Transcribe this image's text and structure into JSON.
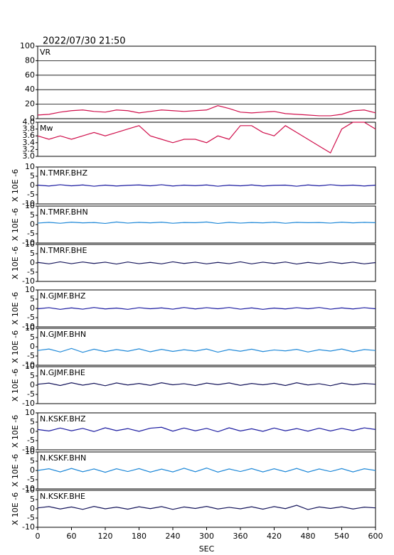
{
  "chart_data": [
    {
      "type": "line",
      "title": "2022/07/30 21:50",
      "grid": true,
      "x": [
        0,
        20,
        40,
        60,
        80,
        100,
        120,
        140,
        160,
        180,
        200,
        220,
        240,
        260,
        280,
        300,
        320,
        340,
        360,
        380,
        400,
        420,
        440,
        460,
        480,
        500,
        520,
        540,
        560,
        580,
        600
      ],
      "xlim": [
        0,
        600
      ],
      "ylim": [
        0,
        100
      ],
      "yticks": [
        0,
        20,
        40,
        60,
        80,
        100
      ],
      "series": [
        {
          "name": "VR",
          "color": "#d0104c",
          "values": [
            5,
            6,
            9,
            11,
            12,
            10,
            9,
            12,
            11,
            8,
            10,
            12,
            11,
            10,
            11,
            12,
            18,
            14,
            9,
            8,
            9,
            10,
            7,
            6,
            5,
            4,
            4,
            6,
            11,
            12,
            8
          ]
        }
      ]
    },
    {
      "type": "line",
      "x": [
        0,
        20,
        40,
        60,
        80,
        100,
        120,
        140,
        160,
        180,
        200,
        220,
        240,
        260,
        280,
        300,
        320,
        340,
        360,
        380,
        400,
        420,
        440,
        460,
        480,
        500,
        520,
        540,
        560,
        580,
        600
      ],
      "xlim": [
        0,
        600
      ],
      "ylim": [
        3.0,
        4.0
      ],
      "yticks": [
        {
          "value": 3.0,
          "label": "3.0"
        },
        3.2,
        3.4,
        3.6,
        3.8,
        {
          "value": 4.0,
          "label": "4.0"
        }
      ],
      "series": [
        {
          "name": "Mw",
          "color": "#d0104c",
          "values": [
            3.6,
            3.5,
            3.6,
            3.5,
            3.6,
            3.7,
            3.6,
            3.7,
            3.8,
            3.9,
            3.6,
            3.5,
            3.4,
            3.5,
            3.5,
            3.4,
            3.6,
            3.5,
            3.9,
            3.9,
            3.7,
            3.6,
            3.9,
            3.7,
            3.5,
            3.3,
            3.1,
            3.8,
            4.0,
            4.0,
            3.8
          ]
        }
      ]
    },
    {
      "type": "line",
      "ylabel": "X 10E -6",
      "x": [
        0,
        20,
        40,
        60,
        80,
        100,
        120,
        140,
        160,
        180,
        200,
        220,
        240,
        260,
        280,
        300,
        320,
        340,
        360,
        380,
        400,
        420,
        440,
        460,
        480,
        500,
        520,
        540,
        560,
        580,
        600
      ],
      "xlim": [
        0,
        600
      ],
      "ylim": [
        -10,
        10
      ],
      "yticks": [
        -10,
        -5,
        0,
        5,
        10
      ],
      "series": [
        {
          "name": "N.TMRF.BHZ",
          "color": "#1a1aa0",
          "values": [
            0.2,
            -0.3,
            0.4,
            -0.2,
            0.3,
            -0.4,
            0.2,
            -0.3,
            0.1,
            0.3,
            -0.2,
            0.4,
            -0.3,
            0.2,
            -0.1,
            0.3,
            -0.4,
            0.2,
            -0.2,
            0.3,
            -0.3,
            0.1,
            0.2,
            -0.4,
            0.3,
            -0.2,
            0.4,
            -0.1,
            0.2,
            -0.3,
            0.2
          ]
        }
      ]
    },
    {
      "type": "line",
      "ylabel": "X 10E -6",
      "x": [
        0,
        20,
        40,
        60,
        80,
        100,
        120,
        140,
        160,
        180,
        200,
        220,
        240,
        260,
        280,
        300,
        320,
        340,
        360,
        380,
        400,
        420,
        440,
        460,
        480,
        500,
        520,
        540,
        560,
        580,
        600
      ],
      "xlim": [
        0,
        600
      ],
      "ylim": [
        -10,
        10
      ],
      "yticks": [
        -10,
        -5,
        0,
        5,
        10
      ],
      "series": [
        {
          "name": "N.TMRF.BHN",
          "color": "#1e88d8",
          "values": [
            0.8,
            1.2,
            0.7,
            1.3,
            0.9,
            1.1,
            0.6,
            1.4,
            0.8,
            1.2,
            0.9,
            1.3,
            0.7,
            1.1,
            1.0,
            1.4,
            0.6,
            1.2,
            0.8,
            1.1,
            0.9,
            1.3,
            0.7,
            1.2,
            1.0,
            1.1,
            0.8,
            1.3,
            0.9,
            1.2,
            1.0
          ]
        }
      ]
    },
    {
      "type": "line",
      "ylabel": "X 10E -6",
      "x": [
        0,
        20,
        40,
        60,
        80,
        100,
        120,
        140,
        160,
        180,
        200,
        220,
        240,
        260,
        280,
        300,
        320,
        340,
        360,
        380,
        400,
        420,
        440,
        460,
        480,
        500,
        520,
        540,
        560,
        580,
        600
      ],
      "xlim": [
        0,
        600
      ],
      "ylim": [
        -10,
        10
      ],
      "yticks": [
        -10,
        -5,
        0,
        5,
        10
      ],
      "series": [
        {
          "name": "N.TMRF.BHE",
          "color": "#14145a",
          "values": [
            0.3,
            -0.5,
            0.6,
            -0.4,
            0.5,
            -0.3,
            0.4,
            -0.6,
            0.5,
            -0.4,
            0.3,
            -0.5,
            0.6,
            -0.3,
            0.4,
            -0.5,
            0.3,
            -0.4,
            0.6,
            -0.5,
            0.4,
            -0.3,
            0.5,
            -0.6,
            0.3,
            -0.4,
            0.5,
            -0.3,
            0.4,
            -0.5,
            0.2
          ]
        }
      ]
    },
    {
      "type": "line",
      "ylabel": "X 10E -6",
      "x": [
        0,
        20,
        40,
        60,
        80,
        100,
        120,
        140,
        160,
        180,
        200,
        220,
        240,
        260,
        280,
        300,
        320,
        340,
        360,
        380,
        400,
        420,
        440,
        460,
        480,
        500,
        520,
        540,
        560,
        580,
        600
      ],
      "xlim": [
        0,
        600
      ],
      "ylim": [
        -10,
        10
      ],
      "yticks": [
        -10,
        -5,
        0,
        5,
        10
      ],
      "series": [
        {
          "name": "N.GJMF.BHZ",
          "color": "#1a1aa0",
          "values": [
            -0.2,
            0.4,
            -0.5,
            0.3,
            -0.4,
            0.5,
            -0.3,
            0.2,
            -0.5,
            0.4,
            -0.2,
            0.3,
            -0.4,
            0.5,
            -0.3,
            0.4,
            -0.2,
            0.5,
            -0.4,
            0.3,
            -0.5,
            0.2,
            -0.3,
            0.4,
            -0.2,
            0.5,
            -0.4,
            0.3,
            -0.3,
            0.4,
            -0.2
          ]
        }
      ]
    },
    {
      "type": "line",
      "ylabel": "X 10E -6",
      "x": [
        0,
        20,
        40,
        60,
        80,
        100,
        120,
        140,
        160,
        180,
        200,
        220,
        240,
        260,
        280,
        300,
        320,
        340,
        360,
        380,
        400,
        420,
        440,
        460,
        480,
        500,
        520,
        540,
        560,
        580,
        600
      ],
      "xlim": [
        0,
        600
      ],
      "ylim": [
        -10,
        10
      ],
      "yticks": [
        -10,
        -5,
        0,
        5,
        10
      ],
      "series": [
        {
          "name": "N.GJMF.BHN",
          "color": "#1e88d8",
          "values": [
            -2.0,
            -1.2,
            -2.8,
            -0.9,
            -3.0,
            -1.3,
            -2.6,
            -1.5,
            -2.4,
            -1.1,
            -2.7,
            -1.4,
            -2.5,
            -1.6,
            -2.3,
            -1.2,
            -2.9,
            -1.5,
            -2.4,
            -1.3,
            -2.6,
            -1.7,
            -2.2,
            -1.4,
            -2.8,
            -1.6,
            -2.3,
            -1.2,
            -2.7,
            -1.5,
            -2.0
          ]
        }
      ]
    },
    {
      "type": "line",
      "ylabel": "X 10E -6",
      "x": [
        0,
        20,
        40,
        60,
        80,
        100,
        120,
        140,
        160,
        180,
        200,
        220,
        240,
        260,
        280,
        300,
        320,
        340,
        360,
        380,
        400,
        420,
        440,
        460,
        480,
        500,
        520,
        540,
        560,
        580,
        600
      ],
      "xlim": [
        0,
        600
      ],
      "ylim": [
        -10,
        10
      ],
      "yticks": [
        -10,
        -5,
        0,
        5,
        10
      ],
      "series": [
        {
          "name": "N.GJMF.BHE",
          "color": "#14145a",
          "values": [
            0.5,
            1.1,
            -0.2,
            1.3,
            0.0,
            1.0,
            -0.3,
            1.2,
            0.1,
            0.9,
            -0.1,
            1.3,
            0.2,
            0.8,
            -0.2,
            1.1,
            0.3,
            1.2,
            -0.1,
            0.9,
            0.2,
            1.0,
            -0.2,
            1.3,
            0.1,
            0.8,
            -0.3,
            1.1,
            0.2,
            0.9,
            0.5
          ]
        }
      ]
    },
    {
      "type": "line",
      "ylabel": "X 10E -6",
      "x": [
        0,
        20,
        40,
        60,
        80,
        100,
        120,
        140,
        160,
        180,
        200,
        220,
        240,
        260,
        280,
        300,
        320,
        340,
        360,
        380,
        400,
        420,
        440,
        460,
        480,
        500,
        520,
        540,
        560,
        580,
        600
      ],
      "xlim": [
        0,
        600
      ],
      "ylim": [
        -10,
        10
      ],
      "yticks": [
        -10,
        -5,
        0,
        5,
        10
      ],
      "series": [
        {
          "name": "N.KSKF.BHZ",
          "color": "#1a1aa0",
          "values": [
            1.0,
            0.2,
            1.8,
            0.3,
            1.6,
            -0.1,
            1.9,
            0.4,
            1.5,
            0.0,
            1.7,
            2.2,
            0.1,
            1.8,
            0.3,
            1.6,
            -0.2,
            1.9,
            0.2,
            1.4,
            0.0,
            1.8,
            0.3,
            1.5,
            0.1,
            1.7,
            0.2,
            1.6,
            0.4,
            1.9,
            1.0
          ]
        }
      ]
    },
    {
      "type": "line",
      "ylabel": "X 10E -6",
      "x": [
        0,
        20,
        40,
        60,
        80,
        100,
        120,
        140,
        160,
        180,
        200,
        220,
        240,
        260,
        280,
        300,
        320,
        340,
        360,
        380,
        400,
        420,
        440,
        460,
        480,
        500,
        520,
        540,
        560,
        580,
        600
      ],
      "xlim": [
        0,
        600
      ],
      "ylim": [
        -10,
        10
      ],
      "yticks": [
        -10,
        -5,
        0,
        5,
        10
      ],
      "series": [
        {
          "name": "N.KSKF.BHN",
          "color": "#1e88d8",
          "values": [
            0.0,
            0.9,
            -0.8,
            1.1,
            -0.7,
            0.8,
            -1.0,
            0.9,
            -0.6,
            1.0,
            -0.9,
            0.7,
            -0.8,
            1.2,
            -0.7,
            1.3,
            -0.9,
            0.8,
            -0.6,
            1.0,
            -0.8,
            0.9,
            -0.7,
            1.1,
            -0.9,
            0.8,
            -0.6,
            1.0,
            -0.8,
            0.9,
            0.0
          ]
        }
      ]
    },
    {
      "type": "line",
      "ylabel": "X 10E -6",
      "xlabel": "SEC",
      "x": [
        0,
        20,
        40,
        60,
        80,
        100,
        120,
        140,
        160,
        180,
        200,
        220,
        240,
        260,
        280,
        300,
        320,
        340,
        360,
        380,
        400,
        420,
        440,
        460,
        480,
        500,
        520,
        540,
        560,
        580,
        600
      ],
      "xlim": [
        0,
        600
      ],
      "ylim": [
        -10,
        10
      ],
      "yticks": [
        -10,
        -5,
        0,
        5,
        10
      ],
      "xticks": [
        0,
        60,
        120,
        180,
        240,
        300,
        360,
        420,
        480,
        540,
        600
      ],
      "series": [
        {
          "name": "N.KSKF.BHE",
          "color": "#14145a",
          "values": [
            0.5,
            1.2,
            -0.1,
            1.0,
            -0.3,
            1.3,
            0.0,
            0.9,
            -0.2,
            1.1,
            0.1,
            1.2,
            -0.3,
            1.0,
            0.2,
            1.3,
            -0.1,
            0.8,
            0.0,
            1.1,
            -0.2,
            1.2,
            0.1,
            1.9,
            -0.4,
            1.0,
            0.2,
            1.1,
            -0.1,
            0.9,
            0.5
          ]
        }
      ]
    }
  ]
}
